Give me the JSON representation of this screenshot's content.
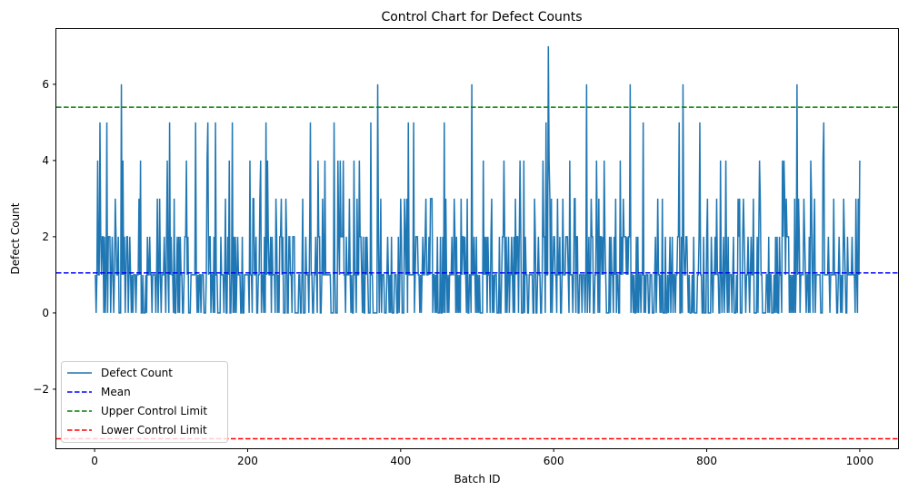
{
  "chart_data": {
    "type": "line",
    "title": "Control Chart for Defect Counts",
    "xlabel": "Batch ID",
    "ylabel": "Defect Count",
    "xlim": [
      -50,
      1050
    ],
    "ylim": [
      -3.55,
      7.45
    ],
    "x_ticks": [
      0,
      200,
      400,
      600,
      800,
      1000
    ],
    "x_tick_labels": [
      "0",
      "200",
      "400",
      "600",
      "800",
      "1000"
    ],
    "y_ticks": [
      -2,
      0,
      2,
      4,
      6
    ],
    "y_tick_labels": [
      "−2",
      "0",
      "2",
      "4",
      "6"
    ],
    "grid": false,
    "legend_position": "lower-left",
    "series": [
      {
        "name": "Defect Count",
        "color": "#1f77b4",
        "style": "solid",
        "x_start": 1,
        "x_end": 1000,
        "values_note_free": true,
        "peaks": [
          {
            "x": 7,
            "y": 5
          },
          {
            "x": 16,
            "y": 5
          },
          {
            "x": 35,
            "y": 6
          },
          {
            "x": 60,
            "y": 4
          },
          {
            "x": 98,
            "y": 5
          },
          {
            "x": 132,
            "y": 5
          },
          {
            "x": 148,
            "y": 5
          },
          {
            "x": 158,
            "y": 5
          },
          {
            "x": 180,
            "y": 5
          },
          {
            "x": 203,
            "y": 4
          },
          {
            "x": 224,
            "y": 5
          },
          {
            "x": 282,
            "y": 5
          },
          {
            "x": 313,
            "y": 5
          },
          {
            "x": 361,
            "y": 5
          },
          {
            "x": 370,
            "y": 6
          },
          {
            "x": 410,
            "y": 5
          },
          {
            "x": 417,
            "y": 5
          },
          {
            "x": 457,
            "y": 5
          },
          {
            "x": 493,
            "y": 6
          },
          {
            "x": 535,
            "y": 4
          },
          {
            "x": 561,
            "y": 4
          },
          {
            "x": 590,
            "y": 5
          },
          {
            "x": 593,
            "y": 7
          },
          {
            "x": 643,
            "y": 6
          },
          {
            "x": 656,
            "y": 4
          },
          {
            "x": 700,
            "y": 6
          },
          {
            "x": 717,
            "y": 5
          },
          {
            "x": 764,
            "y": 5
          },
          {
            "x": 769,
            "y": 6
          },
          {
            "x": 791,
            "y": 5
          },
          {
            "x": 818,
            "y": 4
          },
          {
            "x": 869,
            "y": 4
          },
          {
            "x": 918,
            "y": 6
          },
          {
            "x": 953,
            "y": 5
          },
          {
            "x": 1000,
            "y": 4
          }
        ]
      },
      {
        "name": "Mean",
        "color": "#0000ff",
        "style": "dashed",
        "y": 1.05
      },
      {
        "name": "Upper Control Limit",
        "color": "#008000",
        "style": "dashed",
        "y": 5.4
      },
      {
        "name": "Lower Control Limit",
        "color": "#ff0000",
        "style": "dashed",
        "y": -3.3
      }
    ]
  }
}
